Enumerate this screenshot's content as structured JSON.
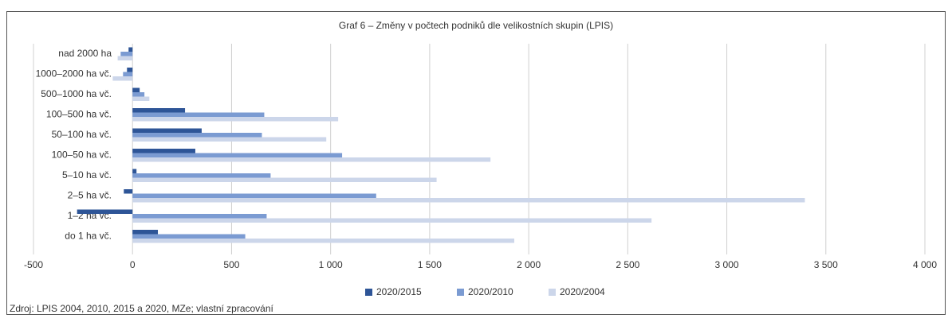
{
  "chart_data": {
    "type": "hbar",
    "title": "Graf 6 – Změny v počtech podniků dle velikostních skupin (LPIS)",
    "source": "Zdroj: LPIS 2004, 2010, 2015 a 2020, MZe; vlastní zpracování",
    "categories": [
      "nad 2000 ha",
      "1000–2000 ha vč.",
      "500–1000 ha vč.",
      "100–500 ha vč.",
      "50–100 ha vč.",
      "100–50 ha vč.",
      "5–10 ha vč.",
      "2–5 ha vč.",
      "1–2 ha vč.",
      "do 1 ha vč."
    ],
    "series": [
      {
        "name": "2020/2015",
        "color": "#2e5597",
        "values": [
          -20,
          -28,
          36,
          265,
          349,
          317,
          20,
          -44,
          -280,
          128
        ]
      },
      {
        "name": "2020/2010",
        "color": "#7b9bd2",
        "values": [
          -60,
          -48,
          60,
          665,
          653,
          1058,
          697,
          1230,
          677,
          569
        ]
      },
      {
        "name": "2020/2004",
        "color": "#ccd6ea",
        "values": [
          -75,
          -100,
          85,
          1038,
          978,
          1807,
          1535,
          3394,
          2620,
          1927
        ]
      }
    ],
    "xlim": [
      -500,
      4000
    ],
    "xticks": [
      -500,
      0,
      500,
      {
        "value": 1000,
        "label": "1 000"
      },
      {
        "value": 1500,
        "label": "1 500"
      },
      {
        "value": 2000,
        "label": "2 000"
      },
      {
        "value": 2500,
        "label": "2 500"
      },
      {
        "value": 3000,
        "label": "3 000"
      },
      {
        "value": 3500,
        "label": "3 500"
      },
      {
        "value": 4000,
        "label": "4 000"
      }
    ],
    "grid": true,
    "legend": "bottom"
  }
}
